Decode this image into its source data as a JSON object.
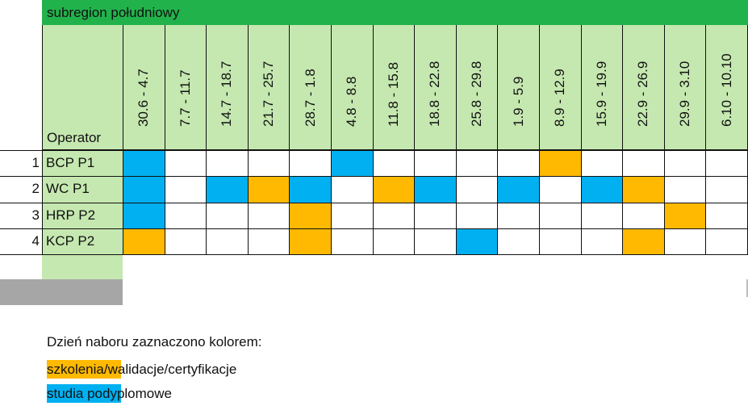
{
  "title": "subregion południowy",
  "header": {
    "operator_label": "Operator"
  },
  "dates": [
    "30.6 - 4.7",
    "7.7 - 11.7",
    "14.7 - 18.7",
    "21.7 - 25.7",
    "28.7 - 1.8",
    "4.8 - 8.8",
    "11.8 - 15.8",
    "18.8 - 22.8",
    "25.8 - 29.8",
    "1.9 - 5.9",
    "8.9 - 12.9",
    "15.9 - 19.9",
    "22.9 - 26.9",
    "29.9 - 3.10",
    "6.10 - 10.10"
  ],
  "rows": [
    {
      "num": "1",
      "operator": "BCP P1",
      "cells": [
        "b",
        "",
        "",
        "",
        "",
        "b",
        "",
        "",
        "",
        "",
        "o",
        "",
        "",
        "",
        ""
      ]
    },
    {
      "num": "2",
      "operator": "WC P1",
      "cells": [
        "b",
        "",
        "b",
        "o",
        "b",
        "",
        "o",
        "b",
        "",
        "b",
        "",
        "b",
        "o",
        "",
        ""
      ]
    },
    {
      "num": "3",
      "operator": "HRP P2",
      "cells": [
        "b",
        "",
        "",
        "",
        "o",
        "",
        "",
        "",
        "",
        "",
        "",
        "",
        "",
        "o",
        ""
      ]
    },
    {
      "num": "4",
      "operator": "KCP P2",
      "cells": [
        "o",
        "",
        "",
        "",
        "o",
        "",
        "",
        "",
        "b",
        "",
        "",
        "",
        "o",
        "",
        ""
      ]
    }
  ],
  "colors": {
    "o": "#ffb900",
    "b": "#00b0f0",
    "header_green": "#22b24c",
    "light_green": "#c5e8b0"
  },
  "legend": {
    "intro": "Dzień naboru zaznaczono kolorem:",
    "orange": "szkolenia/walidacje/certyfikacje",
    "blue": "studia podyplomowe"
  }
}
